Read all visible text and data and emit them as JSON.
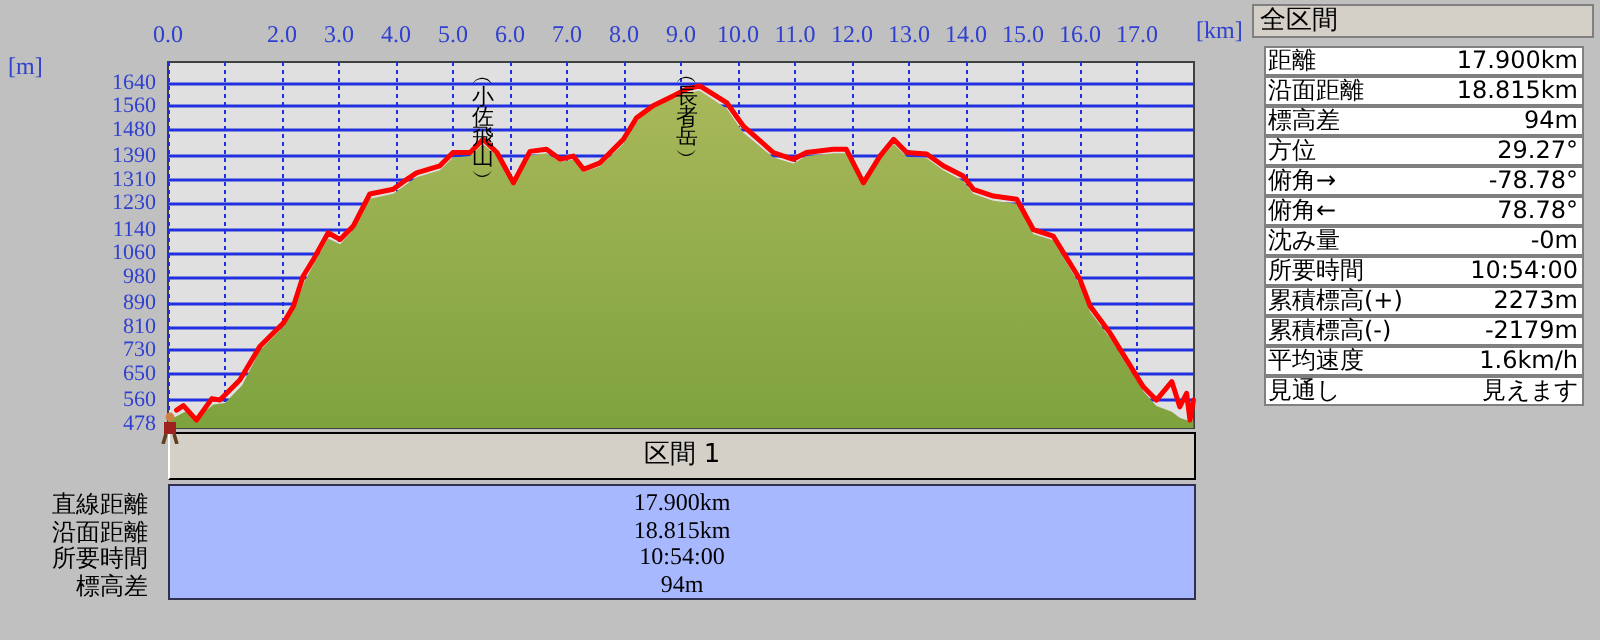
{
  "chart_data": [
    {
      "type": "area",
      "xlabel": "[km]",
      "ylabel": "[m]",
      "grid": true,
      "xlim": [
        0,
        18
      ],
      "ylim": [
        465,
        1710
      ],
      "xticks": [
        {
          "value": 0,
          "label": "0.0"
        },
        {
          "value": 1,
          "label": null
        },
        {
          "value": 2,
          "label": "2.0"
        },
        {
          "value": 3,
          "label": "3.0"
        },
        {
          "value": 4,
          "label": "4.0"
        },
        {
          "value": 5,
          "label": "5.0"
        },
        {
          "value": 6,
          "label": "6.0"
        },
        {
          "value": 7,
          "label": "7.0"
        },
        {
          "value": 8,
          "label": "8.0"
        },
        {
          "value": 9,
          "label": "9.0"
        },
        {
          "value": 10,
          "label": "10.0"
        },
        {
          "value": 11,
          "label": "11.0"
        },
        {
          "value": 12,
          "label": "12.0"
        },
        {
          "value": 13,
          "label": "13.0"
        },
        {
          "value": 14,
          "label": "14.0"
        },
        {
          "value": 15,
          "label": "15.0"
        },
        {
          "value": 16,
          "label": "16.0"
        },
        {
          "value": 17,
          "label": "17.0"
        }
      ],
      "yticks": [
        478,
        560,
        650,
        730,
        810,
        890,
        980,
        1060,
        1140,
        1230,
        1310,
        1390,
        1480,
        1560,
        1640
      ],
      "annotations": [
        {
          "text": "︵小佐飛山︶",
          "x": 5.53,
          "y": 1447
        },
        {
          "text": "︵長者岳︶",
          "x": 9.1,
          "y": 1618
        }
      ],
      "series": [
        {
          "type": "area",
          "color": "#7ea23e",
          "x": [
            0,
            0.3,
            0.5,
            0.8,
            1.0,
            1.3,
            1.6,
            2.0,
            2.2,
            2.4,
            2.55,
            2.81,
            3.02,
            3.25,
            3.54,
            3.95,
            4.19,
            4.36,
            4.77,
            5.0,
            5.3,
            5.53,
            5.77,
            6.06,
            6.35,
            6.64,
            6.88,
            7.11,
            7.29,
            7.58,
            7.99,
            8.22,
            8.57,
            8.87,
            9.1,
            9.33,
            9.8,
            10.09,
            10.62,
            10.97,
            11.2,
            11.67,
            11.9,
            12.2,
            12.49,
            12.73,
            12.96,
            13.31,
            13.6,
            13.95,
            14.13,
            14.48,
            14.89,
            15.18,
            15.53,
            16.0,
            16.18,
            16.53,
            16.82,
            17.11,
            17.34,
            17.61,
            17.75,
            17.9,
            17.99
          ],
          "values": [
            490,
            520,
            500,
            545,
            550,
            610,
            725,
            805,
            865,
            965,
            1020,
            1110,
            1090,
            1140,
            1245,
            1262,
            1295,
            1318,
            1342,
            1385,
            1390,
            1430,
            1390,
            1290,
            1392,
            1400,
            1370,
            1378,
            1335,
            1355,
            1432,
            1505,
            1575,
            1585,
            1605,
            1612,
            1552,
            1470,
            1385,
            1365,
            1390,
            1400,
            1400,
            1290,
            1378,
            1432,
            1388,
            1383,
            1342,
            1305,
            1262,
            1238,
            1228,
            1125,
            1104,
            950,
            860,
            770,
            680,
            590,
            540,
            520,
            500,
            490,
            490
          ]
        },
        {
          "type": "line",
          "color": "#ff0000",
          "x": [
            0.15,
            0.27,
            0.5,
            0.77,
            0.91,
            1.26,
            1.61,
            2.02,
            2.2,
            2.37,
            2.55,
            2.81,
            3.02,
            3.25,
            3.54,
            3.95,
            4.19,
            4.36,
            4.77,
            5.0,
            5.3,
            5.53,
            5.77,
            6.06,
            6.35,
            6.64,
            6.88,
            7.11,
            7.29,
            7.58,
            7.99,
            8.22,
            8.51,
            8.87,
            9.1,
            9.33,
            9.8,
            10.09,
            10.62,
            10.97,
            11.2,
            11.67,
            11.9,
            12.2,
            12.49,
            12.73,
            12.96,
            13.31,
            13.6,
            13.95,
            14.13,
            14.48,
            14.89,
            15.18,
            15.53,
            16.0,
            16.18,
            16.53,
            16.82,
            17.11,
            17.34,
            17.61,
            17.75,
            17.87,
            17.93,
            17.99
          ],
          "values": [
            526,
            541,
            492,
            565,
            560,
            628,
            742,
            821,
            879,
            981,
            1038,
            1129,
            1106,
            1152,
            1261,
            1277,
            1311,
            1333,
            1357,
            1402,
            1402,
            1447,
            1402,
            1299,
            1406,
            1413,
            1379,
            1390,
            1345,
            1367,
            1447,
            1520,
            1561,
            1595,
            1618,
            1629,
            1572,
            1493,
            1402,
            1379,
            1402,
            1413,
            1413,
            1299,
            1390,
            1447,
            1402,
            1397,
            1357,
            1322,
            1277,
            1254,
            1243,
            1140,
            1118,
            970,
            879,
            787,
            696,
            605,
            560,
            623,
            537,
            583,
            492,
            560
          ]
        }
      ]
    },
    {
      "type": "other",
      "title": "全区間",
      "annotations": [
        "距離",
        "17.900km",
        "沿面距離",
        "18.815km",
        "標高差",
        "94m",
        "方位",
        "29.27°",
        "俯角→",
        "-78.78°",
        "俯角←",
        "78.78°",
        "沈み量",
        "-0m",
        "所要時間",
        "10:54:00",
        "累積標高(+)",
        "2273m",
        "累積標高(-)",
        "-2179m",
        "平均速度",
        "1.6km/h",
        "見通し",
        "見えます"
      ]
    },
    {
      "type": "other",
      "title": "区間 1",
      "annotations": [
        "直線距離",
        "17.900km",
        "沿面距離",
        "18.815km",
        "所要時間",
        "10:54:00",
        "標高差",
        "94m"
      ]
    }
  ]
}
